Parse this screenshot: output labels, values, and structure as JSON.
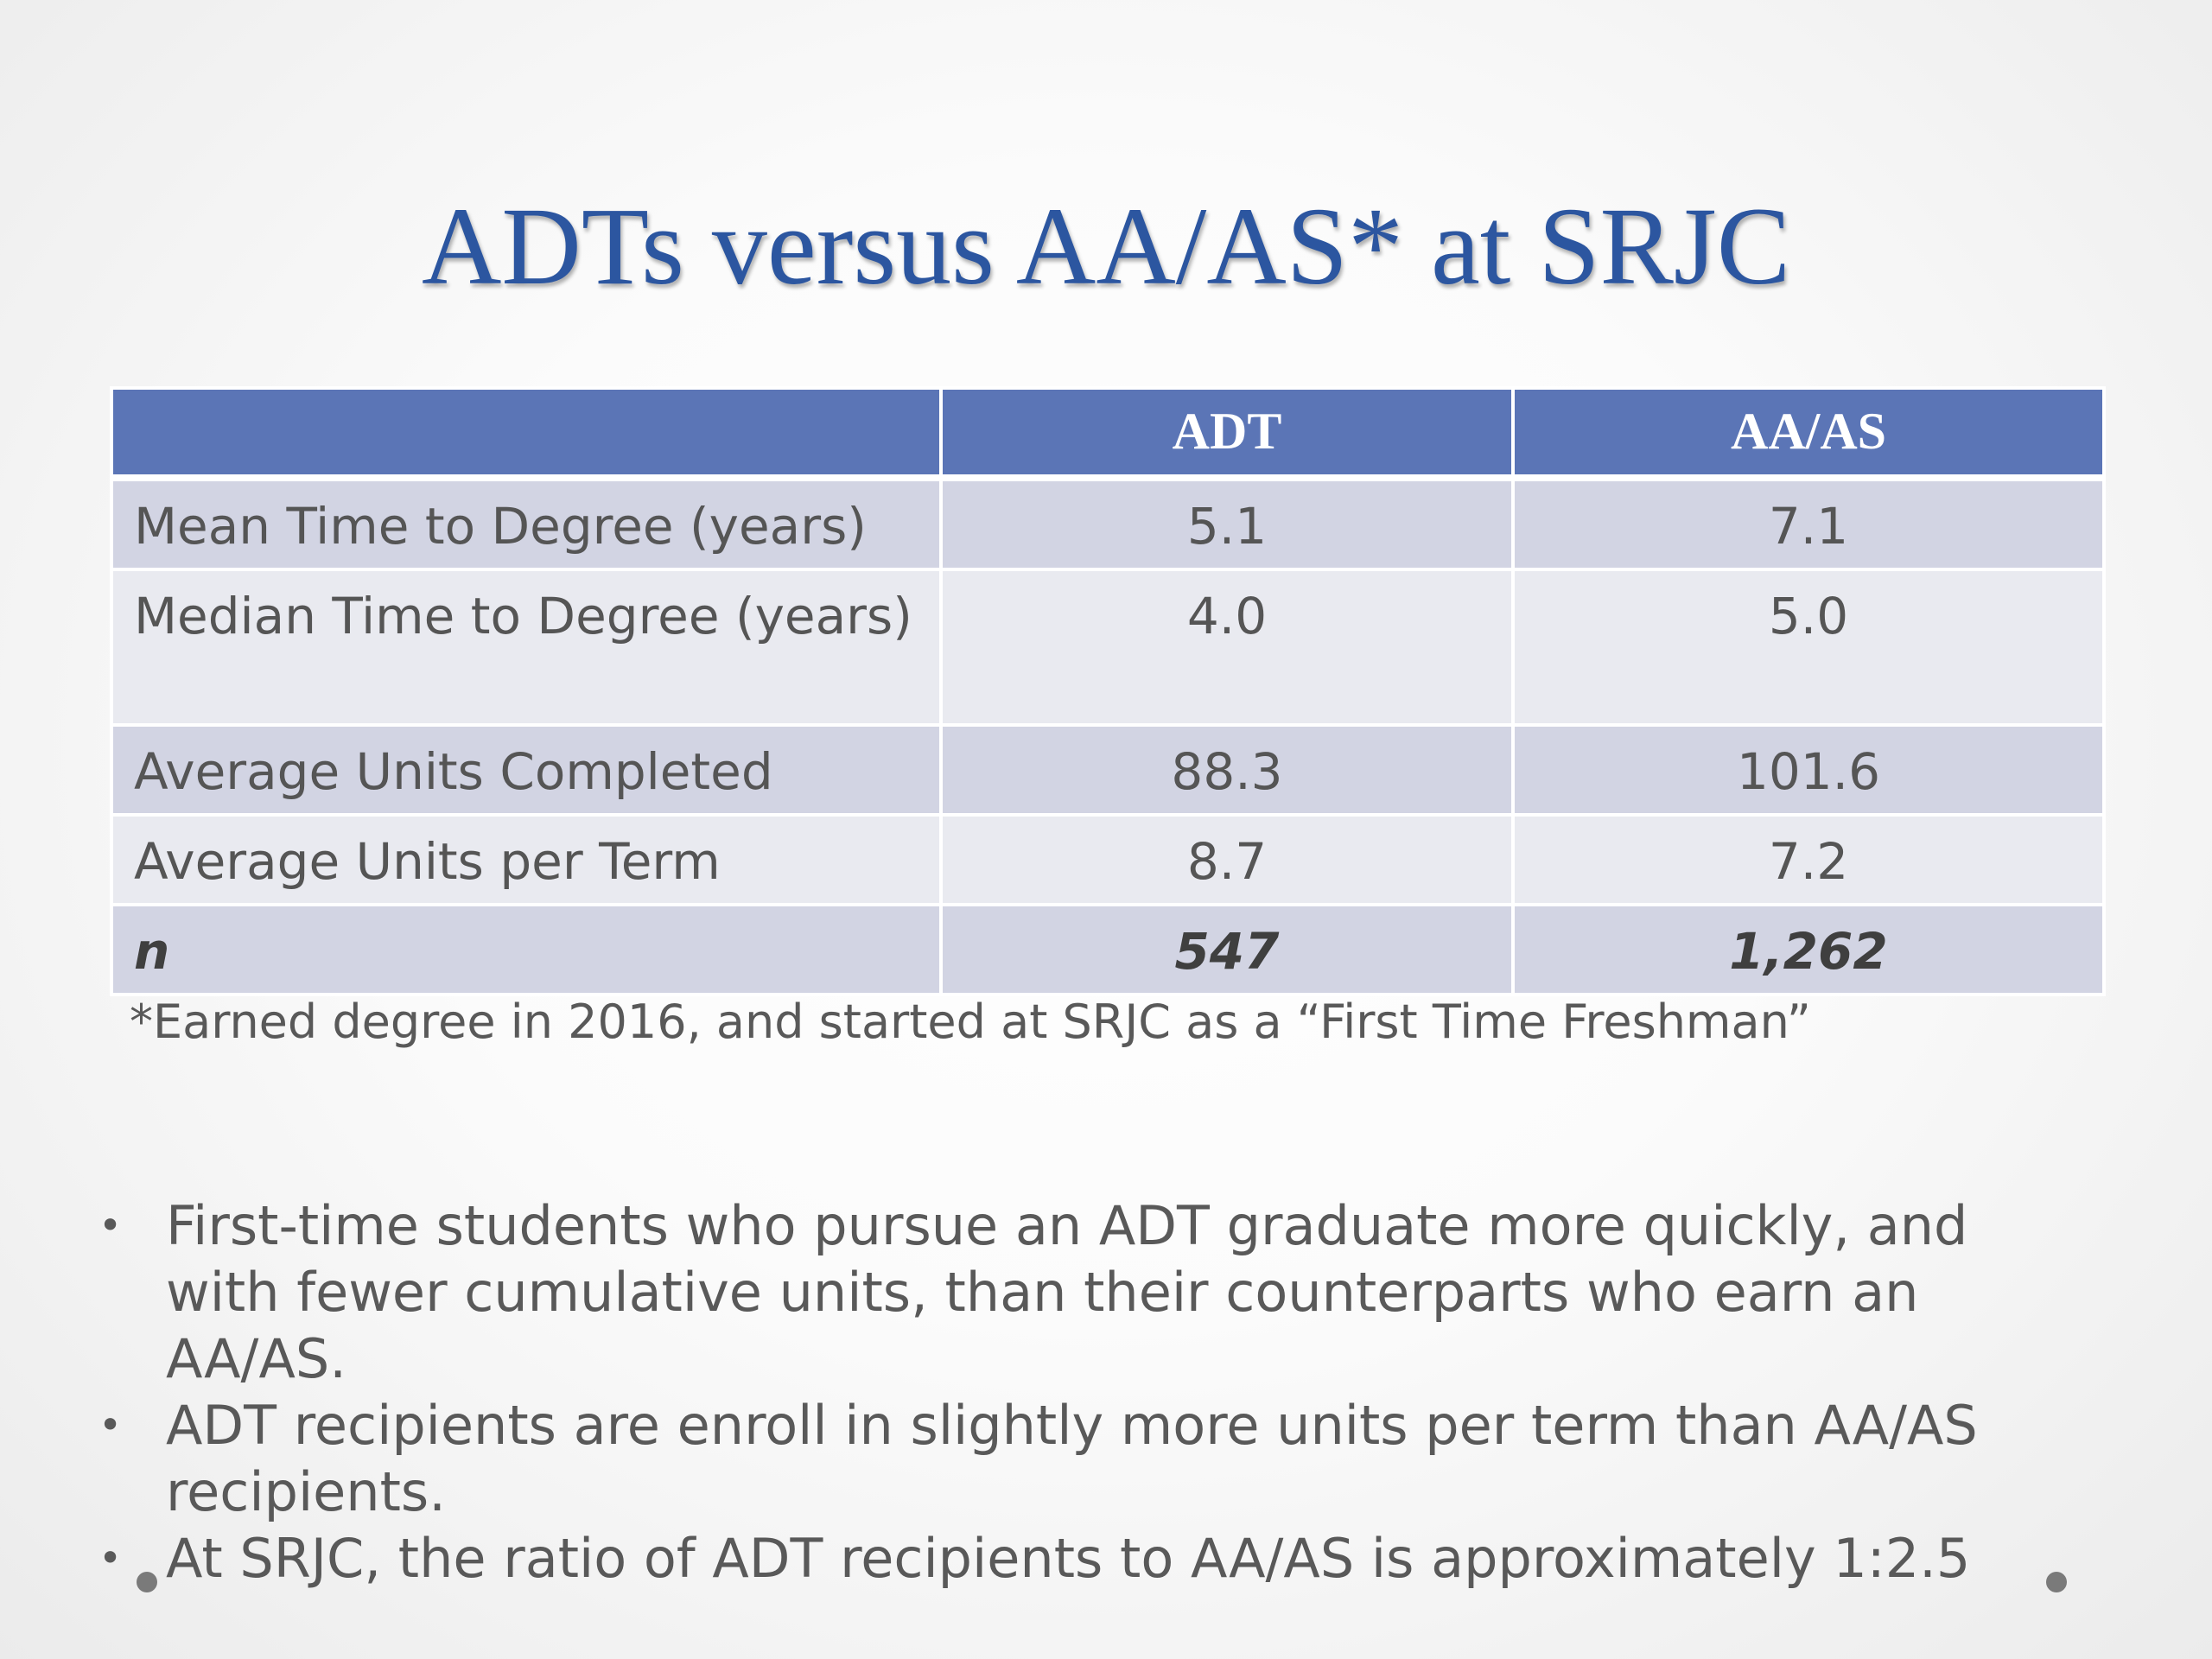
{
  "title": "ADTs versus AA/AS* at SRJC",
  "table": {
    "headers": [
      "",
      "ADT",
      "AA/AS"
    ],
    "rows": [
      {
        "label": "Mean Time to Degree (years)",
        "adt": "5.1",
        "aaas": "7.1"
      },
      {
        "label": "Median Time to Degree (years)",
        "adt": "4.0",
        "aaas": "5.0"
      },
      {
        "label": "Average Units Completed",
        "adt": "88.3",
        "aaas": "101.6"
      },
      {
        "label": "Average Units per Term",
        "adt": "8.7",
        "aaas": "7.2"
      },
      {
        "label": "n",
        "adt": "547",
        "aaas": "1,262"
      }
    ]
  },
  "footnote": "*Earned degree in 2016, and started at SRJC as a “First Time Freshman”",
  "bullets": [
    "First-time students who pursue an ADT graduate more quickly, and with fewer cumulative units, than their counterparts who earn an AA/AS.",
    "ADT recipients are enroll in slightly more units per term than AA/AS recipients.",
    "At SRJC, the ratio of ADT recipients to AA/AS is approximately 1:2.5"
  ],
  "colors": {
    "title": "#2c56a0",
    "header_fill": "#5b75b6",
    "row_dark": "#d2d4e3",
    "row_light": "#e9eaf0",
    "body_text": "#595959"
  },
  "icons": {
    "bullet": "bullet-dot-icon",
    "corner_markers": "corner-dot-icon"
  }
}
